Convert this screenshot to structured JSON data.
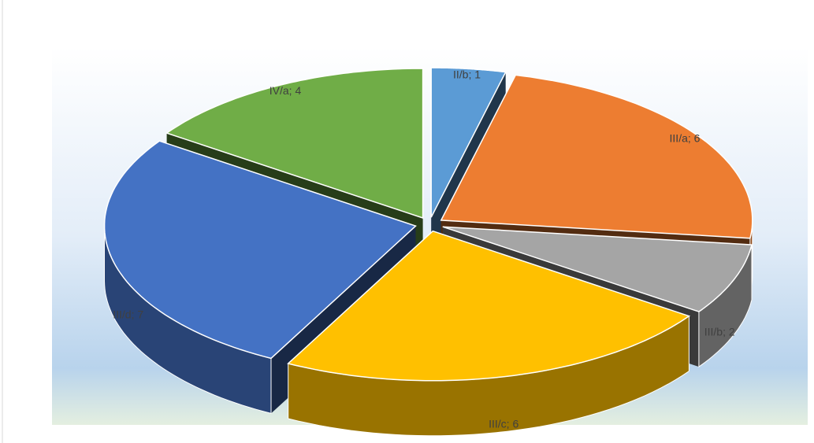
{
  "chart_data": {
    "type": "pie3d",
    "values": [
      1,
      6,
      2,
      6,
      7,
      4
    ],
    "value_labels": [
      "II/b; 1",
      "III/a; 6",
      "III/b; 2",
      "III/c; 6",
      "III/d; 7",
      "IV/a; 4"
    ],
    "colors": [
      "#5b9bd5",
      "#ed7d31",
      "#a5a5a5",
      "#ffc000",
      "#4472c4",
      "#70ad47"
    ]
  }
}
